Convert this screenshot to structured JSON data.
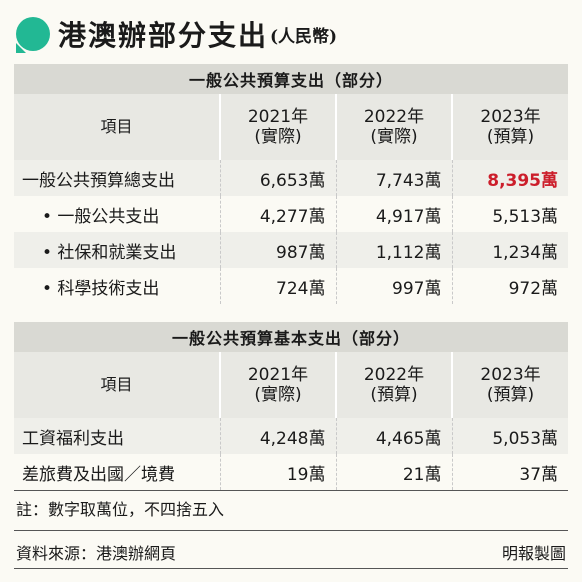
{
  "title": "港澳辦部分支出",
  "title_sub": "(人民幣)",
  "table1": {
    "caption": "一般公共預算支出（部分）",
    "headers": [
      {
        "l1": "項目",
        "l2": ""
      },
      {
        "l1": "2021年",
        "l2": "(實際)"
      },
      {
        "l1": "2022年",
        "l2": "(實際)"
      },
      {
        "l1": "2023年",
        "l2": "(預算)"
      }
    ],
    "rows": [
      {
        "name": "一般公共預算總支出",
        "v2021": "6,653萬",
        "v2022": "7,743萬",
        "v2023": "8,395萬"
      },
      {
        "name": "•  一般公共支出",
        "v2021": "4,277萬",
        "v2022": "4,917萬",
        "v2023": "5,513萬"
      },
      {
        "name": "•  社保和就業支出",
        "v2021": "987萬",
        "v2022": "1,112萬",
        "v2023": "1,234萬"
      },
      {
        "name": "•  科學技術支出",
        "v2021": "724萬",
        "v2022": "997萬",
        "v2023": "972萬"
      }
    ]
  },
  "table2": {
    "caption": "一般公共預算基本支出（部分）",
    "headers": [
      {
        "l1": "項目",
        "l2": ""
      },
      {
        "l1": "2021年",
        "l2": "(實際)"
      },
      {
        "l1": "2022年",
        "l2": "(預算)"
      },
      {
        "l1": "2023年",
        "l2": "(預算)"
      }
    ],
    "rows": [
      {
        "name": "工資福利支出",
        "v2021": "4,248萬",
        "v2022": "4,465萬",
        "v2023": "5,053萬"
      },
      {
        "name": "差旅費及出國／境費",
        "v2021": "19萬",
        "v2022": "21萬",
        "v2023": "37萬"
      }
    ]
  },
  "note": "註：數字取萬位，不四捨五入",
  "source": "資料來源：港澳辦網頁",
  "credit": "明報製圖",
  "colors": {
    "accent": "#22b894",
    "highlight": "#cc1e2b"
  }
}
